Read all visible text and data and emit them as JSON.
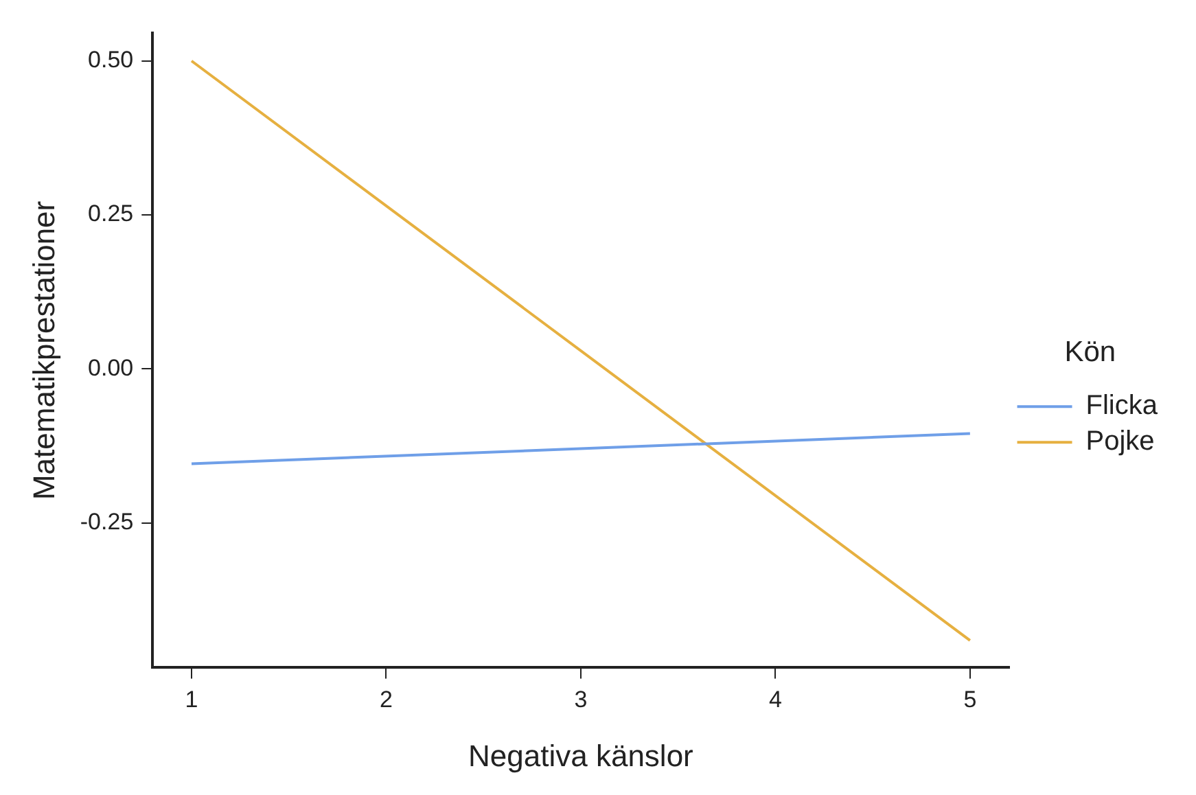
{
  "chart_data": {
    "type": "line",
    "xlabel": "Negativa känslor",
    "ylabel": "Matematikprestationer",
    "legend_title": "Kön",
    "legend": "right",
    "grid": false,
    "marker": "none",
    "line_style": "solid",
    "x": [
      1,
      5
    ],
    "xlim": [
      0.8,
      5.2
    ],
    "xticks": [
      1,
      2,
      3,
      4,
      5
    ],
    "ylim": [
      -0.485,
      0.545
    ],
    "yticks": [
      {
        "value": 0.5,
        "label": "0.50"
      },
      {
        "value": 0.25,
        "label": "0.25"
      },
      {
        "value": 0,
        "label": "0.00"
      },
      {
        "value": -0.25,
        "label": "-0.25"
      }
    ],
    "series": [
      {
        "name": "Flicka",
        "color": "#6f9fe8",
        "values": [
          -0.154,
          -0.105
        ]
      },
      {
        "name": "Pojke",
        "color": "#e6b040",
        "values": [
          0.5,
          -0.441
        ]
      }
    ]
  }
}
